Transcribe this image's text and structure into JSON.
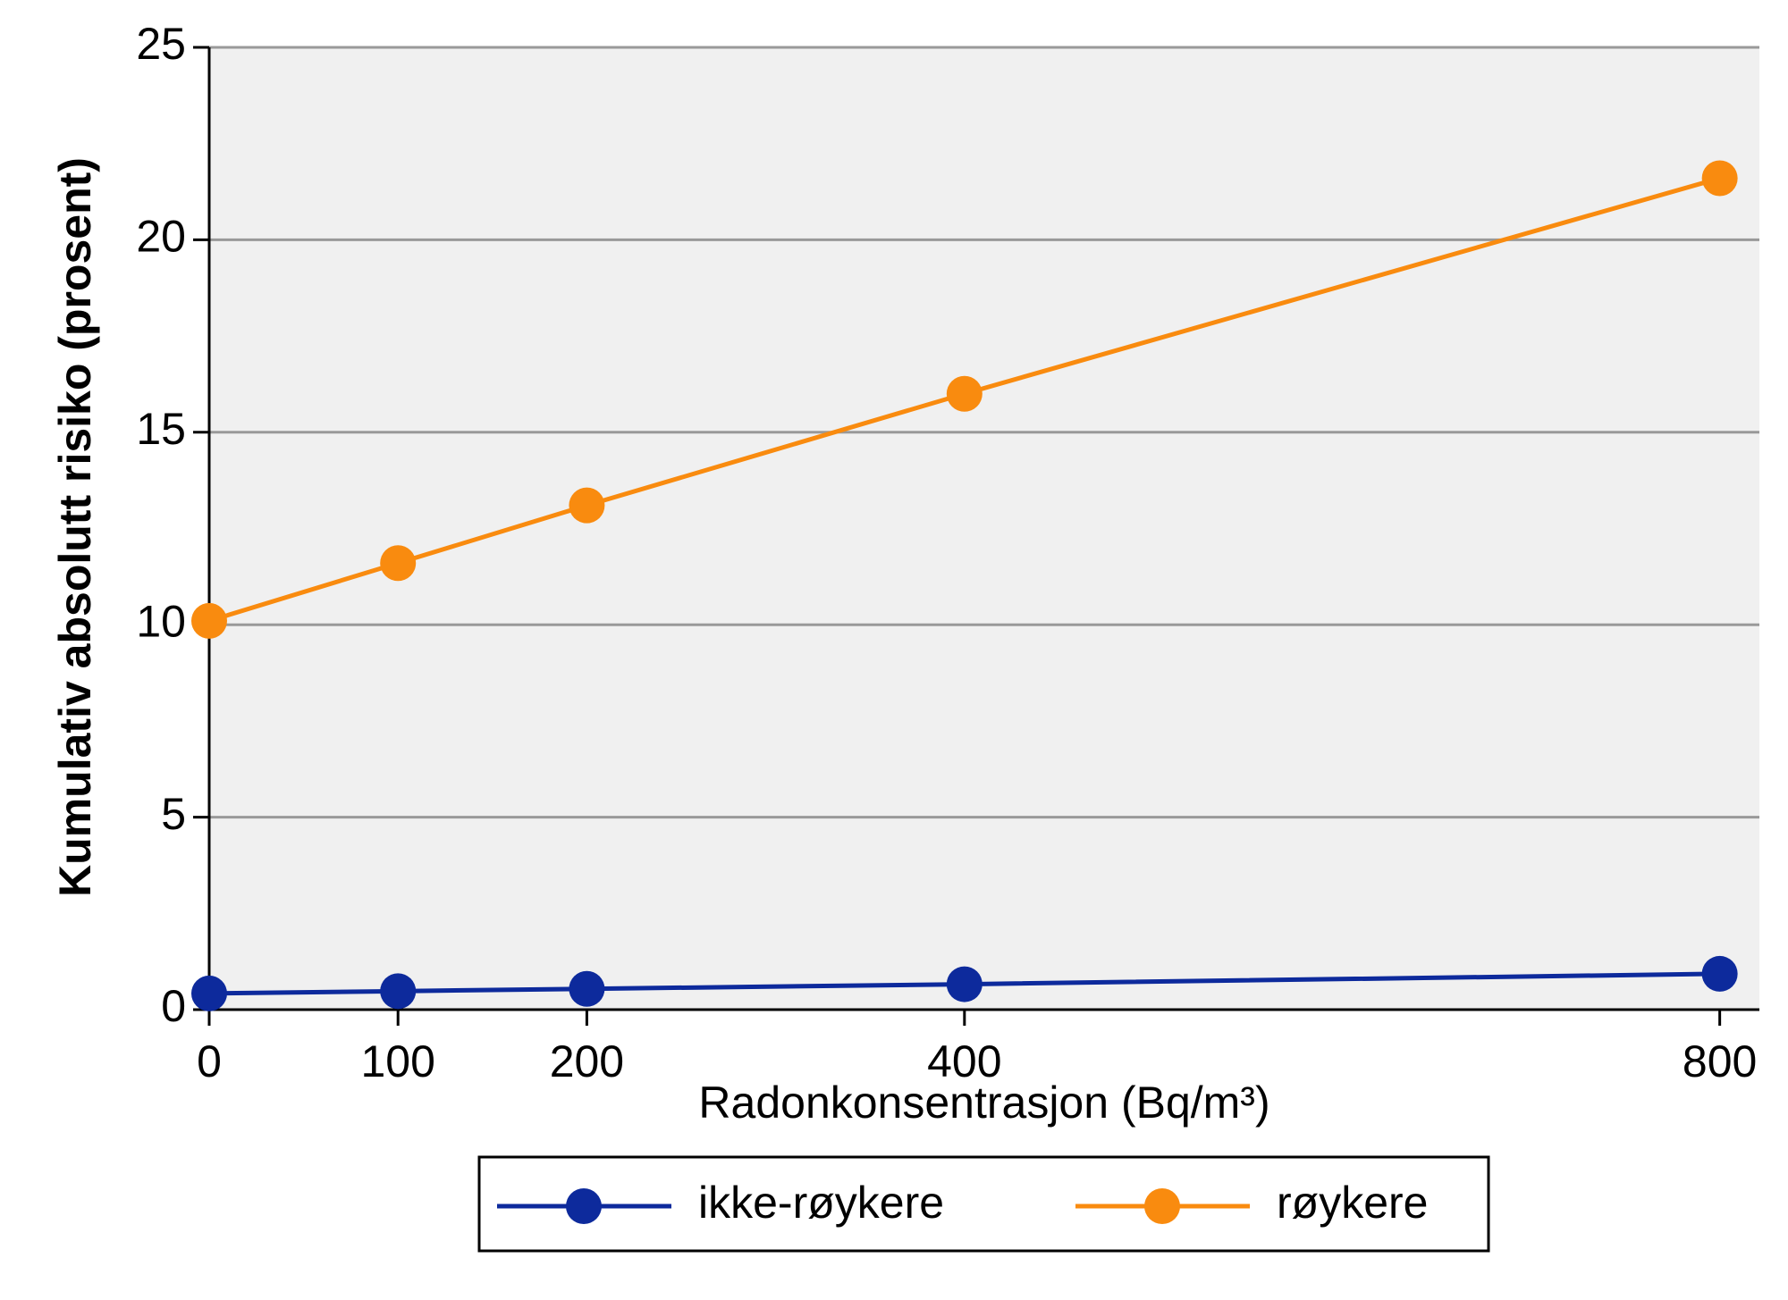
{
  "chart_data": {
    "type": "line",
    "x_label": "Radonkonsentrasjon (Bq/m³)",
    "y_label": "Kumulativ absolutt risiko (prosent)",
    "x": [
      0,
      100,
      200,
      400,
      800
    ],
    "series": [
      {
        "name": "ikke-røykere",
        "color": "#0d2a9c",
        "values": [
          0.42,
          0.48,
          0.54,
          0.66,
          0.93
        ]
      },
      {
        "name": "røykere",
        "color": "#f98b0f",
        "values": [
          10.1,
          11.6,
          13.1,
          16.0,
          21.6
        ]
      }
    ],
    "xlim": [
      0,
      821
    ],
    "xticks": [
      0,
      100,
      200,
      400,
      800
    ],
    "ylim": [
      0,
      25
    ],
    "yticks": [
      0,
      5,
      10,
      15,
      20,
      25
    ],
    "grid": true,
    "legend": "bottom"
  }
}
